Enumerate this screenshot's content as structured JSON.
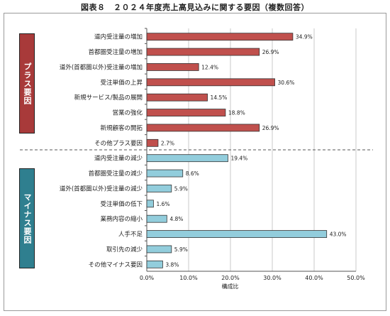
{
  "title": "図表８　２０２４年度売上高見込みに関する要因（複数回答）",
  "groups": [
    {
      "label": "プラス要因",
      "color": "#a83a3a"
    },
    {
      "label": "マイナス要因",
      "color": "#2f7f8f"
    }
  ],
  "chart_data": {
    "type": "bar",
    "orientation": "horizontal",
    "title": "図表８　２０２４年度売上高見込みに関する要因（複数回答）",
    "xlabel": "構成比",
    "ylabel": "",
    "xlim": [
      0,
      50
    ],
    "xticks": [
      "0.0%",
      "10.0%",
      "20.0%",
      "30.0%",
      "40.0%",
      "50.0%"
    ],
    "grid": true,
    "series": [
      {
        "group": "プラス要因",
        "color": "#c0504d",
        "categories": [
          "道内受注量の増加",
          "首都圏受注量の増加",
          "道外(首都圏以外)受注量の増加",
          "受注単価の上昇",
          "新規サービス/製品の展開",
          "営業の強化",
          "新規顧客の開拓",
          "その他プラス要因"
        ],
        "values": [
          34.9,
          26.9,
          12.4,
          30.6,
          14.5,
          18.8,
          26.9,
          2.7
        ],
        "labels": [
          "34.9%",
          "26.9%",
          "12.4%",
          "30.6%",
          "14.5%",
          "18.8%",
          "26.9%",
          "2.7%"
        ]
      },
      {
        "group": "マイナス要因",
        "color": "#92cddc",
        "categories": [
          "道内受注量の減少",
          "首都圏受注量の減少",
          "道外(首都圏以外)受注量の減少",
          "受注単価の低下",
          "業務内容の縮小",
          "人手不足",
          "取引先の減少",
          "その他マイナス要因"
        ],
        "values": [
          19.4,
          8.6,
          5.9,
          1.6,
          4.8,
          43.0,
          5.9,
          3.8
        ],
        "labels": [
          "19.4%",
          "8.6%",
          "5.9%",
          "1.6%",
          "4.8%",
          "43.0%",
          "5.9%",
          "3.8%"
        ]
      }
    ]
  }
}
